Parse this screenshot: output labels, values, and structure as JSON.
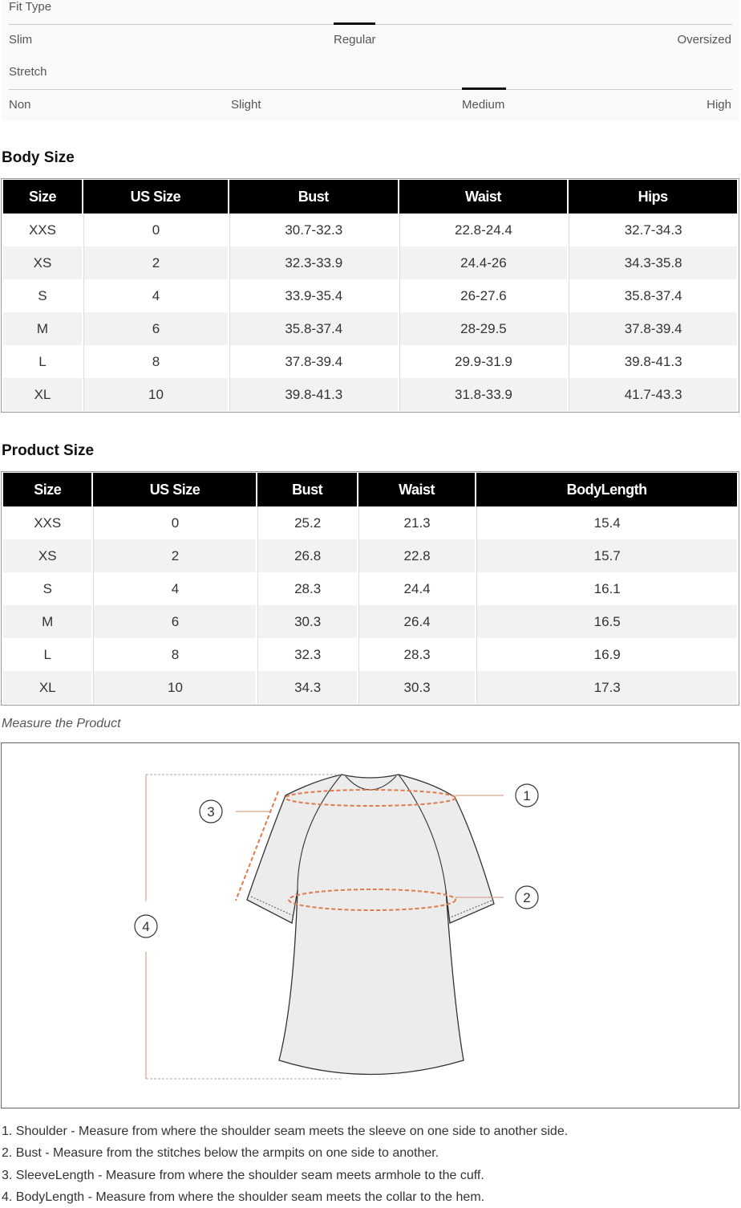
{
  "fit_type": {
    "label": "Fit Type",
    "options": [
      "Slim",
      "Regular",
      "Oversized"
    ],
    "selected": "Regular"
  },
  "stretch": {
    "label": "Stretch",
    "options": [
      "Non",
      "Slight",
      "Medium",
      "High"
    ],
    "selected": "Medium"
  },
  "body_size": {
    "title": "Body Size",
    "headers": [
      "Size",
      "US Size",
      "Bust",
      "Waist",
      "Hips"
    ],
    "rows": [
      [
        "XXS",
        "0",
        "30.7-32.3",
        "22.8-24.4",
        "32.7-34.3"
      ],
      [
        "XS",
        "2",
        "32.3-33.9",
        "24.4-26",
        "34.3-35.8"
      ],
      [
        "S",
        "4",
        "33.9-35.4",
        "26-27.6",
        "35.8-37.4"
      ],
      [
        "M",
        "6",
        "35.8-37.4",
        "28-29.5",
        "37.8-39.4"
      ],
      [
        "L",
        "8",
        "37.8-39.4",
        "29.9-31.9",
        "39.8-41.3"
      ],
      [
        "XL",
        "10",
        "39.8-41.3",
        "31.8-33.9",
        "41.7-43.3"
      ]
    ]
  },
  "product_size": {
    "title": "Product Size",
    "headers": [
      "Size",
      "US Size",
      "Bust",
      "Waist",
      "BodyLength"
    ],
    "rows": [
      [
        "XXS",
        "0",
        "25.2",
        "21.3",
        "15.4"
      ],
      [
        "XS",
        "2",
        "26.8",
        "22.8",
        "15.7"
      ],
      [
        "S",
        "4",
        "28.3",
        "24.4",
        "16.1"
      ],
      [
        "M",
        "6",
        "30.3",
        "26.4",
        "16.5"
      ],
      [
        "L",
        "8",
        "32.3",
        "28.3",
        "16.9"
      ],
      [
        "XL",
        "10",
        "34.3",
        "30.3",
        "17.3"
      ]
    ]
  },
  "measure": {
    "caption": "Measure the Product",
    "markers": [
      "1",
      "2",
      "3",
      "4"
    ],
    "accent": "#e07a4a"
  },
  "notes": [
    "1. Shoulder - Measure from where the shoulder seam meets the sleeve on one side to another side.",
    "2. Bust - Measure from the stitches below the armpits on one side to another.",
    "3. SleeveLength - Measure from where the shoulder seam meets armhole to the cuff.",
    "4. BodyLength - Measure from where the shoulder seam meets the collar to the hem."
  ]
}
